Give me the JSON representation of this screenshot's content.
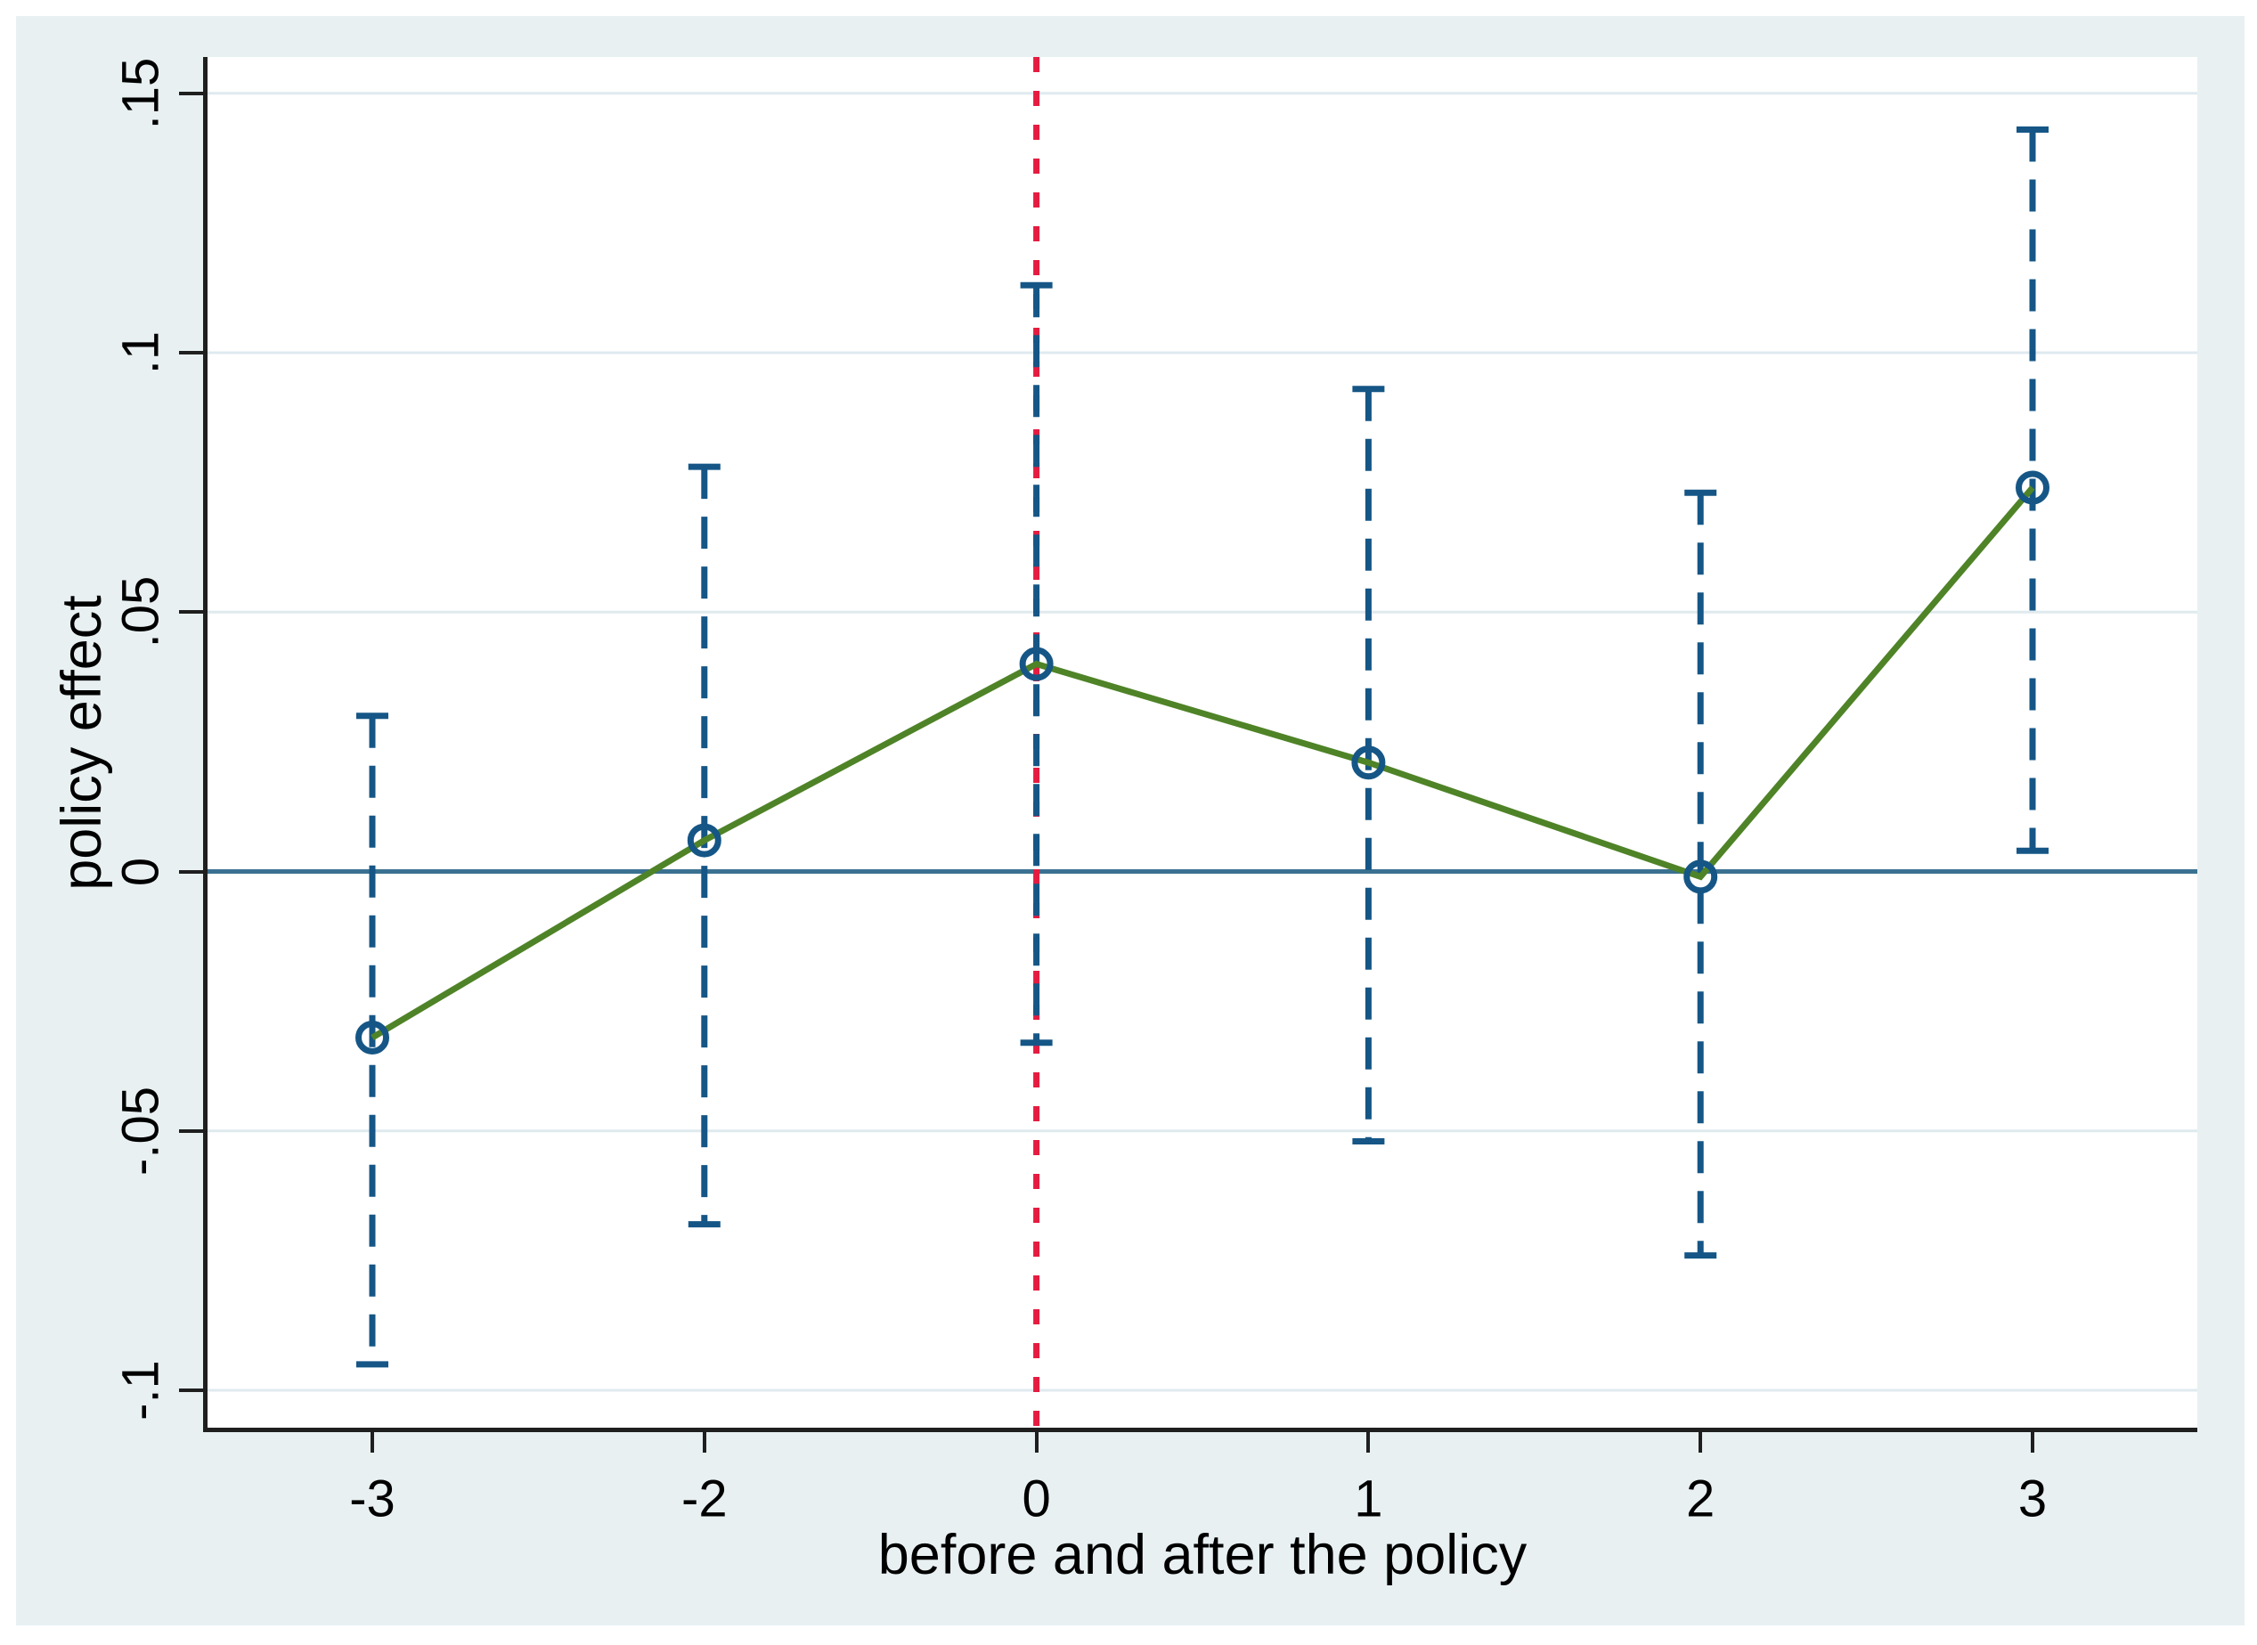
{
  "page": {
    "background": "#ffffff"
  },
  "figure": {
    "background": "#e8f0f2"
  },
  "chart_data": {
    "type": "line",
    "title": "",
    "xlabel": "before and after the policy",
    "ylabel": "policy effect",
    "x_tick_labels": [
      "-3",
      "-2",
      "0",
      "1",
      "2",
      "3"
    ],
    "y_tick_labels": [
      ".15",
      ".1",
      ".05",
      "0",
      "-.05",
      "-.1"
    ],
    "y_tick_values": [
      0.15,
      0.1,
      0.05,
      0,
      -0.05,
      -0.1
    ],
    "ylim": [
      -0.1072,
      0.157
    ],
    "grid": true,
    "legend": "none",
    "points": [
      {
        "x": "-3",
        "estimate": -0.032,
        "ci_low": -0.095,
        "ci_high": 0.03
      },
      {
        "x": "-2",
        "estimate": 0.006,
        "ci_low": -0.068,
        "ci_high": 0.078
      },
      {
        "x": "0",
        "estimate": 0.04,
        "ci_low": -0.033,
        "ci_high": 0.113
      },
      {
        "x": "1",
        "estimate": 0.021,
        "ci_low": -0.052,
        "ci_high": 0.093
      },
      {
        "x": "2",
        "estimate": -0.001,
        "ci_low": -0.074,
        "ci_high": 0.073
      },
      {
        "x": "3",
        "estimate": 0.074,
        "ci_low": 0.004,
        "ci_high": 0.143
      }
    ],
    "series": [
      {
        "name": "point estimate",
        "type": "line+marker",
        "marker": "open-circle",
        "line_color": "#4f8327",
        "marker_color": "#155686"
      },
      {
        "name": "confidence interval",
        "type": "error-bar",
        "style": "dashed",
        "color": "#155686"
      }
    ],
    "reference_lines": [
      {
        "axis": "y",
        "value": 0,
        "style": "solid",
        "color": "#3a7191",
        "name": "zero-line"
      },
      {
        "axis": "x",
        "at_category": "0",
        "style": "dashed",
        "color": "#e51b40",
        "name": "policy-start-line"
      }
    ],
    "colors": {
      "gridline": "#dfeaef",
      "axis": "#1f1f1f",
      "text": "#000000"
    }
  }
}
